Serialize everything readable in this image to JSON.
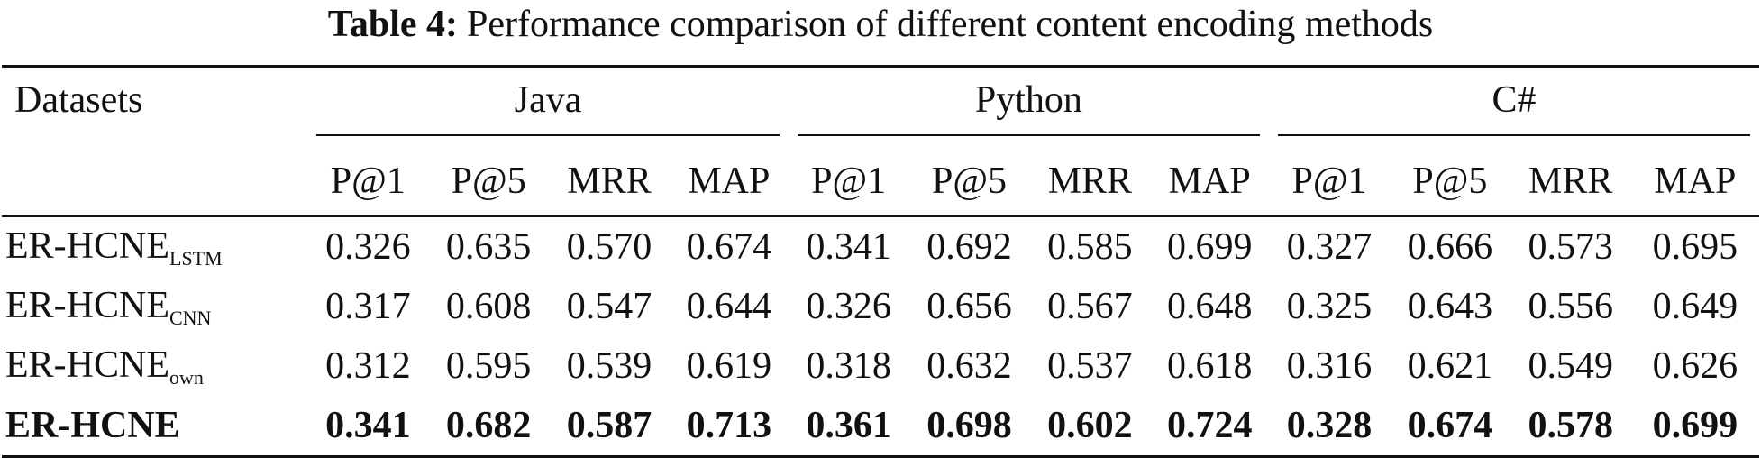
{
  "caption": {
    "label": "Table 4:",
    "text": "Performance comparison of different content encoding methods"
  },
  "header": {
    "datasets": "Datasets",
    "groups": [
      "Java",
      "Python",
      "C#"
    ],
    "metrics": [
      "P@1",
      "P@5",
      "MRR",
      "MAP"
    ]
  },
  "rows": [
    {
      "base": "ER-HCNE",
      "sub": "LSTM",
      "bold": false,
      "values": [
        "0.326",
        "0.635",
        "0.570",
        "0.674",
        "0.341",
        "0.692",
        "0.585",
        "0.699",
        "0.327",
        "0.666",
        "0.573",
        "0.695"
      ]
    },
    {
      "base": "ER-HCNE",
      "sub": "CNN",
      "bold": false,
      "values": [
        "0.317",
        "0.608",
        "0.547",
        "0.644",
        "0.326",
        "0.656",
        "0.567",
        "0.648",
        "0.325",
        "0.643",
        "0.556",
        "0.649"
      ]
    },
    {
      "base": "ER-HCNE",
      "sub": "own",
      "bold": false,
      "values": [
        "0.312",
        "0.595",
        "0.539",
        "0.619",
        "0.318",
        "0.632",
        "0.537",
        "0.618",
        "0.316",
        "0.621",
        "0.549",
        "0.626"
      ]
    },
    {
      "base": "ER-HCNE",
      "sub": "",
      "bold": true,
      "values": [
        "0.341",
        "0.682",
        "0.587",
        "0.713",
        "0.361",
        "0.698",
        "0.602",
        "0.724",
        "0.328",
        "0.674",
        "0.578",
        "0.699"
      ]
    }
  ]
}
